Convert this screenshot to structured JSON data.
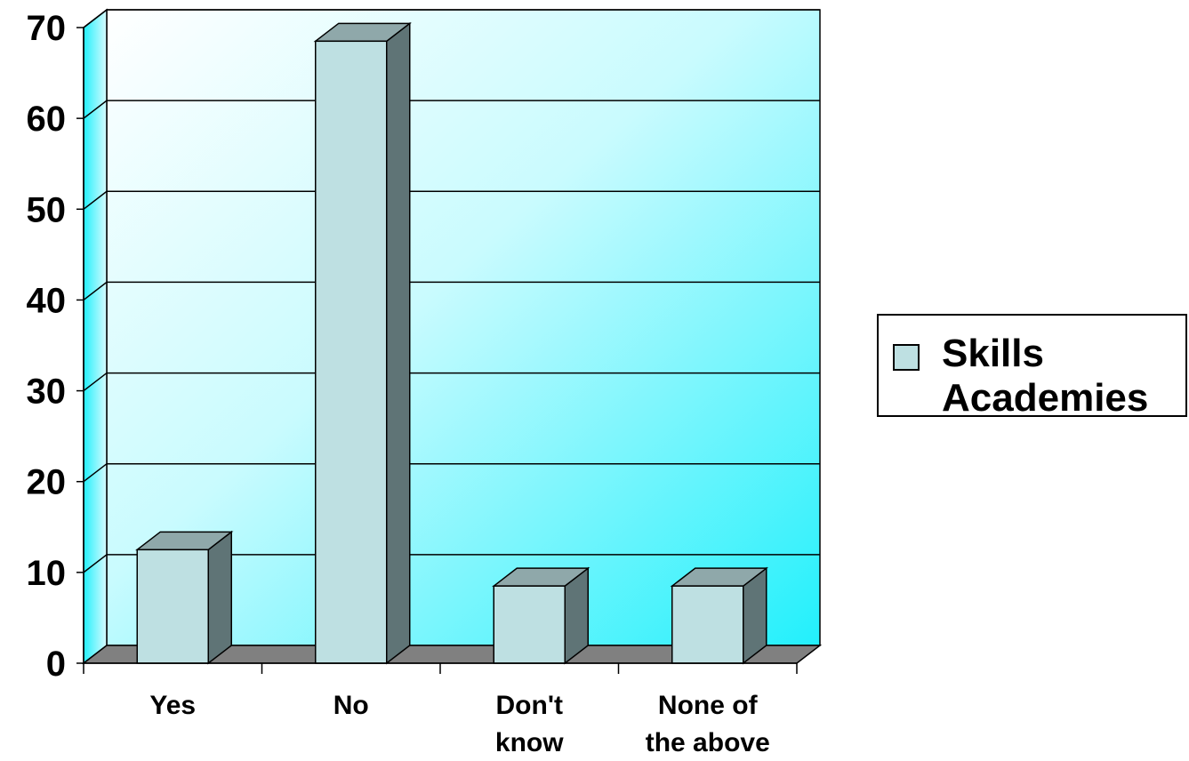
{
  "chart_data": {
    "type": "bar",
    "categories": [
      "Yes",
      "No",
      "Don't know",
      "None of the above"
    ],
    "category_lines": [
      [
        "Yes"
      ],
      [
        "No"
      ],
      [
        "Don't",
        "know"
      ],
      [
        "None of",
        "the above"
      ]
    ],
    "series": [
      {
        "name": "Skills Academies",
        "values": [
          12.5,
          68.5,
          8.5,
          8.5
        ]
      }
    ],
    "title": "",
    "xlabel": "",
    "ylabel": "",
    "ylim": [
      0,
      70
    ],
    "yticks": [
      "0",
      "10",
      "20",
      "30",
      "40",
      "50",
      "60",
      "70"
    ],
    "grid": true,
    "legend_position": "right",
    "legend_lines": [
      "Skills",
      "Academies"
    ],
    "colors": {
      "bar_front": "#bee0e2",
      "bar_top": "#8fa8aa",
      "bar_side": "#5f7476",
      "floor": "#808080",
      "wall_light": "#ffffff",
      "wall_dark": "#22f0fc"
    }
  }
}
